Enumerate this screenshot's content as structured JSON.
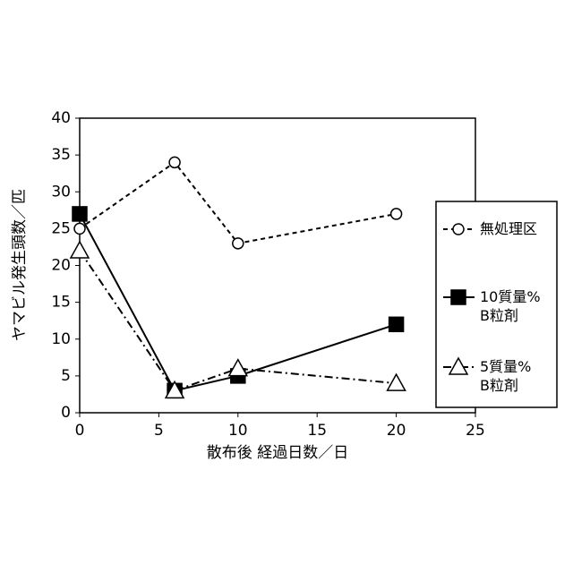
{
  "chart_data": {
    "type": "line",
    "x_label": "散布後 経過日数／日",
    "y_label": "ヤマビル発生頭数／匹",
    "x": [
      0,
      6,
      10,
      20
    ],
    "series": [
      {
        "name": "無処理区",
        "color": "#000000",
        "marker": "circle",
        "dash": "dashed",
        "values": [
          25,
          34,
          23,
          27
        ]
      },
      {
        "name": "10質量%\nB粒剤",
        "color": "#000000",
        "marker": "square",
        "dash": "solid",
        "values": [
          27,
          3,
          5,
          12
        ]
      },
      {
        "name": "5質量%\nB粒剤",
        "color": "#000000",
        "marker": "triangle",
        "dash": "dashdot",
        "values": [
          22,
          3,
          6,
          4
        ]
      }
    ],
    "xlim": [
      0,
      25
    ],
    "xticks": [
      0,
      5,
      10,
      15,
      20,
      25
    ],
    "ylim": [
      0,
      40
    ],
    "yticks": [
      0,
      5,
      10,
      15,
      20,
      25,
      30,
      35,
      40
    ],
    "legend": "right",
    "grid": false
  }
}
